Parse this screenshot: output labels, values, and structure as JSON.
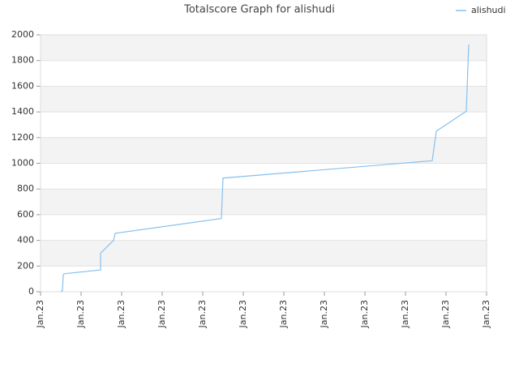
{
  "chart_data": {
    "type": "line",
    "title": "Totalscore Graph for alishudi",
    "x": [
      0.5,
      0.54,
      0.56,
      0.58,
      1.48,
      1.48,
      1.8,
      1.84,
      4.46,
      4.5,
      9.66,
      9.76,
      10.5,
      10.56
    ],
    "series": [
      {
        "name": "alishudi",
        "color": "#88c0ee",
        "values": [
          0,
          10,
          130,
          140,
          170,
          300,
          400,
          455,
          570,
          885,
          1020,
          1250,
          1405,
          1925
        ]
      }
    ],
    "xlim": [
      0,
      11
    ],
    "xticks": [
      {
        "value": 0,
        "label": "Jan.23"
      },
      {
        "value": 1,
        "label": "Jan.23"
      },
      {
        "value": 2,
        "label": "Jan.23"
      },
      {
        "value": 3,
        "label": "Jan.23"
      },
      {
        "value": 4,
        "label": "Jan.23"
      },
      {
        "value": 5,
        "label": "Jan.23"
      },
      {
        "value": 6,
        "label": "Jan.23"
      },
      {
        "value": 7,
        "label": "Jan.23"
      },
      {
        "value": 8,
        "label": "Jan.23"
      },
      {
        "value": 9,
        "label": "Jan.23"
      },
      {
        "value": 10,
        "label": "Jan.23"
      },
      {
        "value": 11,
        "label": "Jan.23"
      }
    ],
    "ylim": [
      0,
      2000
    ],
    "yticks": [
      0,
      200,
      400,
      600,
      800,
      1000,
      1200,
      1400,
      1600,
      1800,
      2000
    ],
    "grid": true,
    "legend": "top-right"
  }
}
